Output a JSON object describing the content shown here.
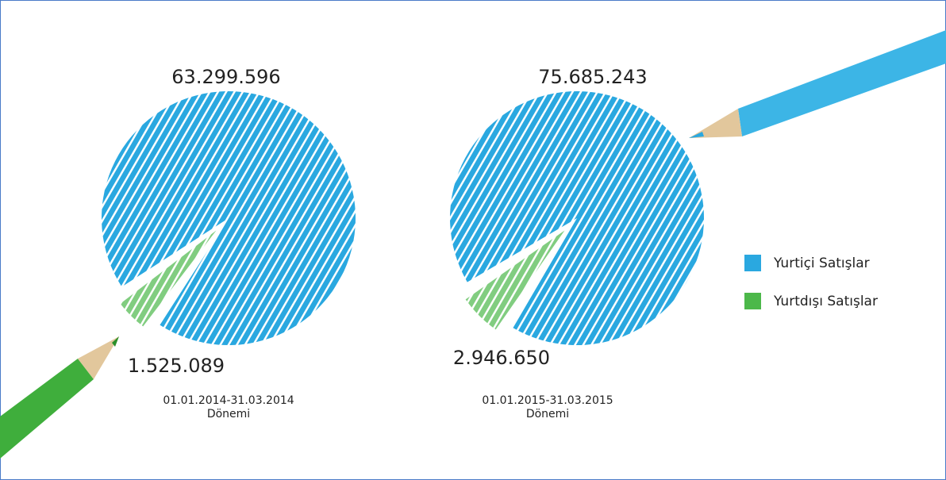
{
  "chart_data": [
    {
      "type": "pie",
      "values": [
        63299596,
        1525089
      ],
      "value_labels": [
        "63.299.596",
        "1.525.089"
      ],
      "subtitle": [
        "01.01.2014-31.03.2014",
        "Dönemi"
      ]
    },
    {
      "type": "pie",
      "values": [
        75685243,
        2946650
      ],
      "value_labels": [
        "75.685.243",
        "2.946.650"
      ],
      "subtitle": [
        "01.01.2015-31.03.2015",
        "Dönemi"
      ]
    }
  ],
  "legend": {
    "items": [
      {
        "name": "Yurtiçi Satışlar",
        "color": "#2aa8e0"
      },
      {
        "name": "Yurtdışı Satışlar",
        "color": "#4cb84a"
      }
    ]
  }
}
